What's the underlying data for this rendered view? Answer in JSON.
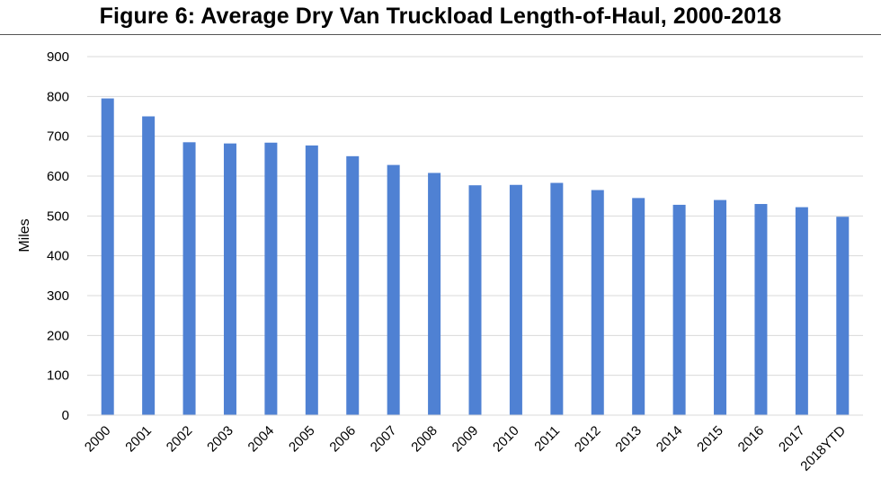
{
  "chart_data": {
    "type": "bar",
    "title": "Figure 6: Average Dry Van Truckload Length-of-Haul, 2000-2018",
    "xlabel": "",
    "ylabel": "Miles",
    "ylim": [
      0,
      900
    ],
    "yticks": [
      0,
      100,
      200,
      300,
      400,
      500,
      600,
      700,
      800,
      900
    ],
    "grid": true,
    "legend": "none",
    "bar_color": "#4f81d3",
    "categories": [
      "2000",
      "2001",
      "2002",
      "2003",
      "2004",
      "2005",
      "2006",
      "2007",
      "2008",
      "2009",
      "2010",
      "2011",
      "2012",
      "2013",
      "2014",
      "2015",
      "2016",
      "2017",
      "2018YTD"
    ],
    "values": [
      795,
      750,
      685,
      682,
      684,
      677,
      650,
      628,
      608,
      577,
      578,
      583,
      565,
      545,
      528,
      540,
      530,
      522,
      498
    ]
  }
}
